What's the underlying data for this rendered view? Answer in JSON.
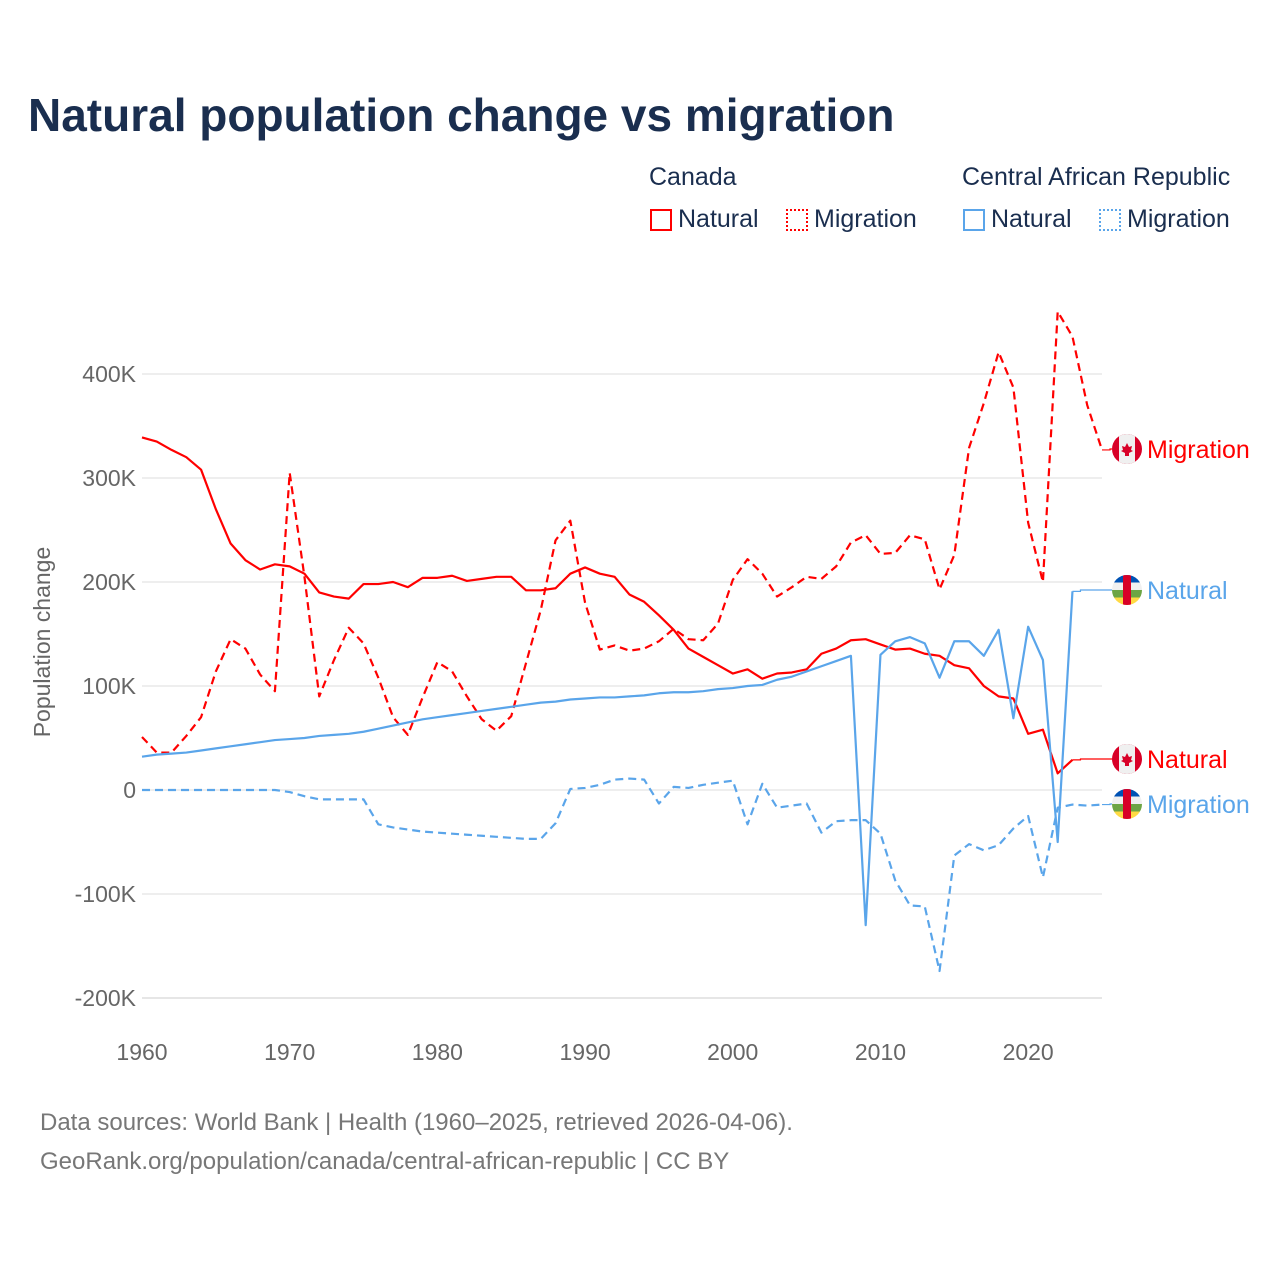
{
  "title": "Natural population change vs migration",
  "legend": {
    "groups": [
      {
        "label": "Canada",
        "color": "#ff0000",
        "items": [
          "Natural",
          "Migration"
        ]
      },
      {
        "label": "Central African Republic",
        "color": "#5aa5ea",
        "items": [
          "Natural",
          "Migration"
        ]
      }
    ]
  },
  "footer": {
    "line1": "Data sources: World Bank | Health (1960–2025, retrieved 2026-04-06).",
    "line2": "GeoRank.org/population/canada/central-african-republic | CC BY"
  },
  "chart_data": {
    "type": "line",
    "title": "Natural population change vs migration",
    "xlabel": "",
    "ylabel": "Population change",
    "xlim": [
      1960,
      2025
    ],
    "ylim": [
      -200000,
      400000
    ],
    "x_ticks": [
      "1960",
      "1970",
      "1980",
      "1990",
      "2000",
      "2010",
      "2020"
    ],
    "y_ticks": [
      {
        "value": -200,
        "label": "-200K"
      },
      {
        "value": -100,
        "label": "-100K"
      },
      {
        "value": 0,
        "label": "0"
      },
      {
        "value": 100,
        "label": "100K"
      },
      {
        "value": 200,
        "label": "200K"
      },
      {
        "value": 300,
        "label": "300K"
      },
      {
        "value": 400,
        "label": "400K"
      }
    ],
    "units": "thousands",
    "start_year": 1960,
    "grid": true,
    "series": [
      {
        "name": "Canada Natural",
        "end_label": "Natural",
        "color": "#ff0000",
        "dash": false,
        "values": [
          339,
          335,
          327,
          320,
          308,
          270,
          237,
          221,
          212,
          217,
          215,
          208,
          190,
          186,
          184,
          198,
          198,
          200,
          195,
          204,
          204,
          206,
          201,
          203,
          205,
          205,
          192,
          192,
          194,
          208,
          214,
          208,
          205,
          188,
          181,
          168,
          154,
          136,
          128,
          120,
          112,
          116,
          107,
          112,
          113,
          116,
          131,
          136,
          144,
          145,
          140,
          135,
          136,
          131,
          129,
          120,
          117,
          100,
          90,
          88,
          54,
          58,
          16,
          29
        ]
      },
      {
        "name": "Canada Migration",
        "end_label": "Migration",
        "color": "#ff0000",
        "dash": true,
        "values": [
          51,
          36,
          36,
          52,
          70,
          114,
          145,
          136,
          111,
          95,
          305,
          205,
          90,
          125,
          156,
          141,
          108,
          70,
          53,
          89,
          123,
          114,
          90,
          68,
          57,
          71,
          122,
          173,
          240,
          259,
          180,
          135,
          139,
          134,
          136,
          143,
          155,
          145,
          144,
          160,
          202,
          222,
          208,
          186,
          195,
          205,
          203,
          215,
          238,
          245,
          227,
          228,
          245,
          241,
          193,
          226,
          329,
          372,
          421,
          387,
          257,
          200,
          460,
          436,
          370,
          327
        ]
      },
      {
        "name": "Central African Republic Natural",
        "end_label": "Natural",
        "color": "#5aa5ea",
        "dash": false,
        "values": [
          32,
          34,
          35,
          36,
          38,
          40,
          42,
          44,
          46,
          48,
          49,
          50,
          52,
          53,
          54,
          56,
          59,
          62,
          65,
          68,
          70,
          72,
          74,
          76,
          78,
          80,
          82,
          84,
          85,
          87,
          88,
          89,
          89,
          90,
          91,
          93,
          94,
          94,
          95,
          97,
          98,
          100,
          101,
          106,
          109,
          114,
          119,
          124,
          129,
          -130,
          130,
          143,
          147,
          141,
          108,
          143,
          143,
          129,
          154,
          69,
          157,
          125,
          -50,
          191
        ]
      },
      {
        "name": "Central African Republic Migration",
        "end_label": "Migration",
        "color": "#5aa5ea",
        "dash": true,
        "values": [
          0,
          0,
          0,
          0,
          0,
          0,
          0,
          0,
          0,
          0,
          -2,
          -6,
          -9,
          -9,
          -9,
          -9,
          -33,
          -36,
          -38,
          -40,
          -41,
          -42,
          -43,
          -44,
          -45,
          -46,
          -47,
          -47,
          -32,
          1,
          2,
          5,
          10,
          11,
          10,
          -13,
          3,
          2,
          5,
          7,
          9,
          -33,
          6,
          -17,
          -15,
          -13,
          -41,
          -30,
          -29,
          -29,
          -42,
          -87,
          -111,
          -112,
          -174,
          -63,
          -52,
          -58,
          -53,
          -37,
          -25,
          -84,
          -17,
          -14,
          -15,
          -14
        ]
      }
    ],
    "legend_placement": "top-right"
  }
}
